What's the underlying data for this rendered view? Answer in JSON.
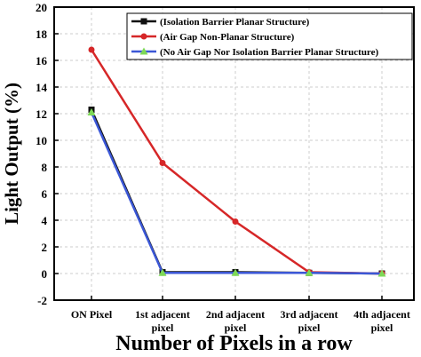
{
  "chart_data": {
    "type": "line",
    "categories": [
      [
        "ON Pixel"
      ],
      [
        "1st adjacent",
        "pixel"
      ],
      [
        "2nd adjacent",
        "pixel"
      ],
      [
        "3rd adjacent",
        "pixel"
      ],
      [
        "4th adjacent",
        "pixel"
      ]
    ],
    "xlabel": "Number of Pixels in a row",
    "ylabel": "Light Output (%)",
    "ylim": [
      -2,
      20
    ],
    "yticks": [
      -2,
      0,
      2,
      4,
      6,
      8,
      10,
      12,
      14,
      16,
      18,
      20
    ],
    "grid": true,
    "legend_position": "top-right",
    "series": [
      {
        "name": "(Isolation Barrier Planar Structure)",
        "color": "#111111",
        "marker": "square",
        "values": [
          12.3,
          0.1,
          0.1,
          0.05,
          0.0
        ]
      },
      {
        "name": "(Air Gap Non-Planar Structure)",
        "color": "#d62728",
        "marker": "circle",
        "values": [
          16.8,
          8.3,
          3.9,
          0.1,
          0.0
        ]
      },
      {
        "name": "(No Air Gap Nor Isolation Barrier Planar Structure)",
        "color": "#3b57d6",
        "marker": "triangle",
        "values": [
          12.1,
          0.05,
          0.05,
          0.05,
          0.0
        ]
      }
    ]
  }
}
